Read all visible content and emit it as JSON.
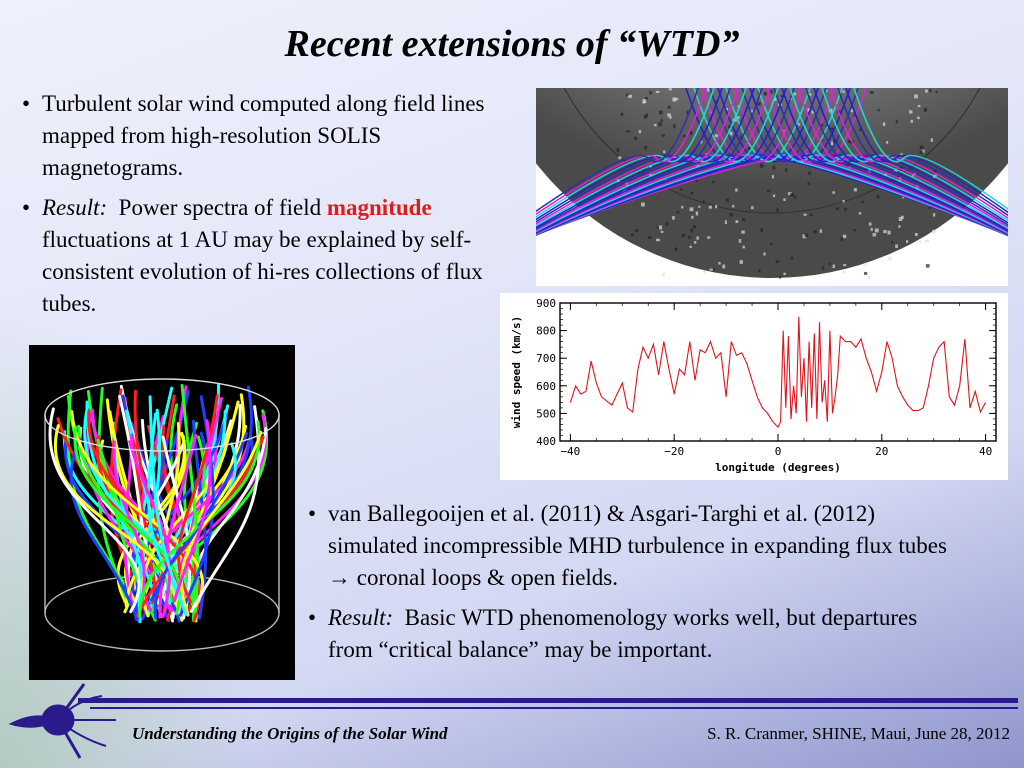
{
  "slide": {
    "title": "Recent extensions of “WTD”",
    "bullets_top": [
      {
        "text": "Turbulent solar wind computed along field lines mapped from high-resolution SOLIS magnetograms."
      },
      {
        "label": "Result:",
        "pre": "Power spectra of field",
        "highlight": "magnitude",
        "post": "fluctuations at 1 AU may be explained by self-consistent evolution of hi-res collections of flux tubes."
      }
    ],
    "bullets_bottom": [
      {
        "text": "van Ballegooijen et al. (2011) & Asgari-Targhi et al. (2012) simulated incompressible MHD turbulence in expanding flux tubes → coronal loops & open fields."
      },
      {
        "label": "Result:",
        "text": "Basic WTD phenomenology works well, but departures from “critical balance” may be important."
      }
    ]
  },
  "footer": {
    "left": "Understanding the Origins of the Solar Wind",
    "right": "S. R. Cranmer, SHINE, Maui, June 28, 2012"
  },
  "colors": {
    "line": "#e0141b",
    "highlight": "#e01b1b",
    "rule": "#2a1a8c"
  },
  "chart_data": {
    "type": "line",
    "xlabel": "longitude (degrees)",
    "ylabel": "wind speed (km/s)",
    "xlim": [
      -42,
      42
    ],
    "ylim": [
      400,
      900
    ],
    "xticks": [
      -40,
      -20,
      0,
      20,
      40
    ],
    "yticks": [
      400,
      500,
      600,
      700,
      800,
      900
    ],
    "grid": false,
    "series": [
      {
        "x": [
          -40,
          -39,
          -38,
          -37,
          -36,
          -35,
          -34,
          -33,
          -32,
          -31,
          -30,
          -29,
          -28,
          -27,
          -26,
          -25,
          -24,
          -23,
          -22,
          -21,
          -20,
          -19,
          -18,
          -17,
          -16,
          -15,
          -14,
          -13,
          -12,
          -11,
          -10,
          -9,
          -8,
          -7,
          -6,
          -5,
          -4,
          -3,
          -2,
          -1,
          0,
          0.5,
          1,
          1.5,
          2,
          2.5,
          3,
          3.5,
          4,
          4.5,
          5,
          5.5,
          6,
          6.5,
          7,
          7.5,
          8,
          8.5,
          9,
          9.5,
          10,
          10.5,
          11,
          11.5,
          12,
          13,
          14,
          15,
          16,
          17,
          18,
          19,
          20,
          21,
          22,
          23,
          24,
          25,
          26,
          27,
          28,
          29,
          30,
          31,
          32,
          33,
          34,
          35,
          36,
          37,
          38,
          39,
          40
        ],
        "y": [
          540,
          600,
          570,
          580,
          690,
          610,
          560,
          545,
          530,
          570,
          610,
          520,
          505,
          660,
          740,
          700,
          750,
          640,
          760,
          660,
          570,
          660,
          640,
          760,
          620,
          730,
          720,
          760,
          700,
          720,
          560,
          760,
          710,
          720,
          680,
          620,
          560,
          520,
          500,
          470,
          450,
          470,
          800,
          520,
          780,
          480,
          600,
          500,
          850,
          560,
          700,
          470,
          760,
          520,
          790,
          480,
          830,
          540,
          620,
          470,
          800,
          500,
          560,
          640,
          780,
          760,
          760,
          740,
          770,
          700,
          650,
          580,
          650,
          760,
          700,
          600,
          560,
          530,
          510,
          510,
          520,
          600,
          700,
          740,
          760,
          560,
          530,
          600,
          770,
          520,
          580,
          505,
          540
        ]
      }
    ]
  }
}
